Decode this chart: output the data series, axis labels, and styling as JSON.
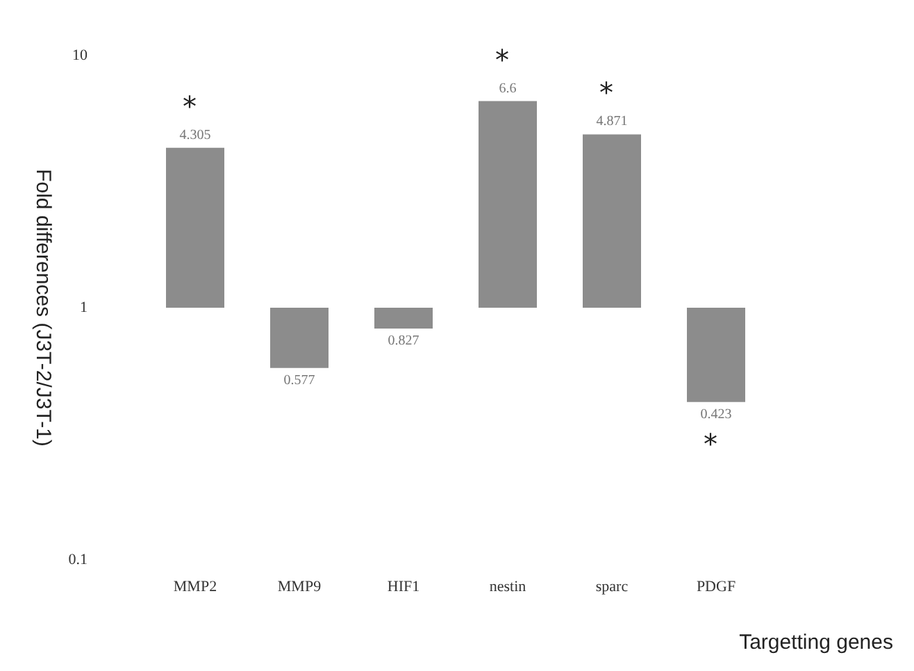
{
  "chart_data": {
    "type": "bar",
    "xlabel": "Targetting genes",
    "ylabel": "Fold differences (J3T-2/J3T-1)",
    "categories": [
      "MMP2",
      "MMP9",
      "HIF1",
      "nestin",
      "sparc",
      "PDGF"
    ],
    "base": [
      1,
      1,
      1,
      1,
      1,
      1
    ],
    "values": [
      3.305,
      -0.423,
      -0.173,
      5.6,
      3.871,
      -0.577
    ],
    "value_labels": [
      "4.305",
      "0.577",
      "0.827",
      "6.6",
      "4.871",
      "0.423"
    ],
    "color": "#8c8c8c",
    "log": true,
    "ylim": [
      0.1,
      10
    ],
    "yticks": [
      0.1,
      1,
      10
    ],
    "grid": false,
    "annotations": [
      {
        "text": "*",
        "x": "MMP2",
        "y": 4.305
      },
      {
        "text": "*",
        "x": "nestin",
        "y": 6.6
      },
      {
        "text": "*",
        "x": "sparc",
        "y": 4.871
      },
      {
        "text": "*",
        "x": "PDGF",
        "y": 0.423
      }
    ]
  }
}
